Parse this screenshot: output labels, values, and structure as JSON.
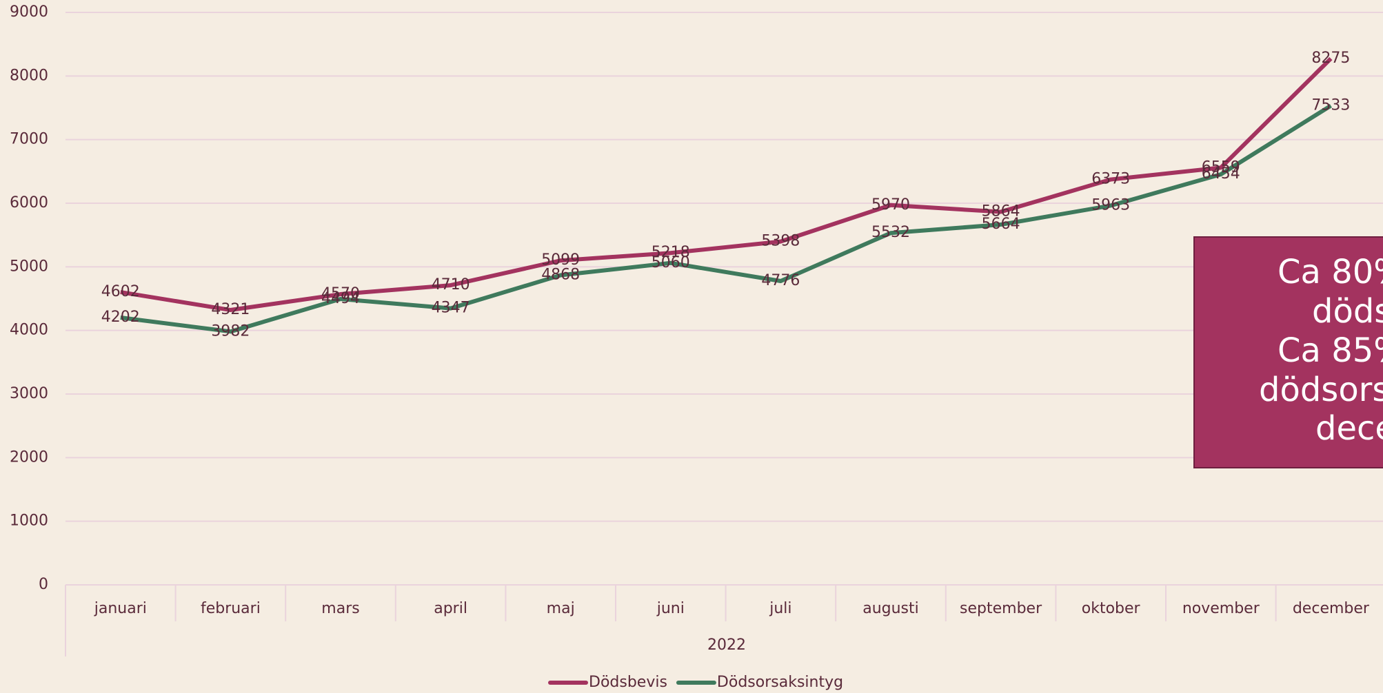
{
  "chart_data": {
    "type": "line",
    "categories": [
      "januari",
      "februari",
      "mars",
      "april",
      "maj",
      "juni",
      "juli",
      "augusti",
      "september",
      "oktober",
      "november",
      "december"
    ],
    "category_group": "2022",
    "series": [
      {
        "name": "Dödsbevis",
        "color": "#a3335f",
        "values": [
          4602,
          4321,
          4570,
          4710,
          5099,
          5218,
          5398,
          5970,
          5864,
          6373,
          6559,
          8275
        ]
      },
      {
        "name": "Dödsorsaksintyg",
        "color": "#3f7a5d",
        "values": [
          4202,
          3982,
          4494,
          4347,
          4868,
          5060,
          4776,
          5532,
          5664,
          5963,
          6454,
          7533
        ]
      }
    ],
    "ylim": [
      0,
      9000
    ],
    "yticks": [
      0,
      1000,
      2000,
      3000,
      4000,
      5000,
      6000,
      7000,
      8000,
      9000
    ],
    "grid": true,
    "legend": "bottom",
    "annotation": {
      "lines": [
        "Ca 80%",
        "döds",
        "Ca 85%",
        "dödsors",
        "dece"
      ],
      "color": "#a3335f"
    }
  }
}
